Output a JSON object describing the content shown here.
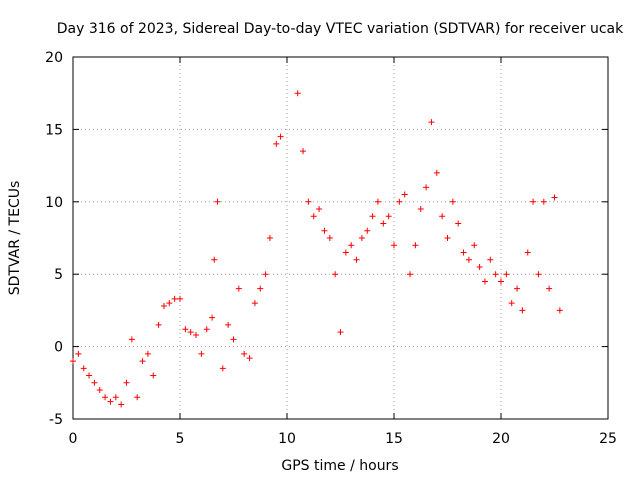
{
  "chart_data": {
    "type": "scatter",
    "title": "Day 316 of 2023, Sidereal Day-to-day VTEC variation (SDTVAR) for receiver ucak",
    "xlabel": "GPS time / hours",
    "ylabel": "SDTVAR / TECUs",
    "xlim": [
      0,
      25
    ],
    "ylim": [
      -5,
      20
    ],
    "xticks": [
      0,
      5,
      10,
      15,
      20,
      25
    ],
    "yticks": [
      -5,
      0,
      5,
      10,
      15,
      20
    ],
    "grid": true,
    "marker": "+",
    "series": [
      {
        "name": "SDTVAR",
        "color": "#ff0000",
        "x": [
          0.0,
          0.25,
          0.5,
          0.75,
          1.0,
          1.25,
          1.5,
          1.75,
          2.0,
          2.25,
          2.5,
          2.75,
          3.0,
          3.25,
          3.5,
          3.75,
          4.0,
          4.25,
          4.5,
          4.75,
          5.0,
          5.25,
          5.5,
          5.75,
          6.0,
          6.25,
          6.5,
          6.6,
          6.75,
          7.0,
          7.25,
          7.5,
          7.75,
          8.0,
          8.25,
          8.5,
          8.75,
          9.0,
          9.2,
          9.5,
          9.7,
          10.5,
          10.75,
          11.0,
          11.25,
          11.5,
          11.75,
          12.0,
          12.25,
          12.5,
          12.75,
          13.0,
          13.25,
          13.5,
          13.75,
          14.0,
          14.25,
          14.5,
          14.75,
          15.0,
          15.25,
          15.5,
          15.75,
          16.0,
          16.25,
          16.5,
          16.75,
          17.0,
          17.25,
          17.5,
          17.75,
          18.0,
          18.25,
          18.5,
          18.75,
          19.0,
          19.25,
          19.5,
          19.75,
          20.0,
          20.25,
          20.5,
          20.75,
          21.0,
          21.25,
          21.5,
          21.75,
          22.0,
          22.25,
          22.5,
          22.75
        ],
        "y": [
          -1.0,
          -0.5,
          -1.5,
          -2.0,
          -2.5,
          -3.0,
          -3.5,
          -3.8,
          -3.5,
          -4.0,
          -2.5,
          0.5,
          -3.5,
          -1.0,
          -0.5,
          -2.0,
          1.5,
          2.8,
          3.0,
          3.3,
          3.3,
          1.2,
          1.0,
          0.8,
          -0.5,
          1.2,
          2.0,
          6.0,
          10.0,
          -1.5,
          1.5,
          0.5,
          4.0,
          -0.5,
          -0.8,
          3.0,
          4.0,
          5.0,
          7.5,
          14.0,
          14.5,
          17.5,
          13.5,
          10.0,
          9.0,
          9.5,
          8.0,
          7.5,
          5.0,
          1.0,
          6.5,
          7.0,
          6.0,
          7.5,
          8.0,
          9.0,
          10.0,
          8.5,
          9.0,
          7.0,
          10.0,
          10.5,
          5.0,
          7.0,
          9.5,
          11.0,
          15.5,
          12.0,
          9.0,
          7.5,
          10.0,
          8.5,
          6.5,
          6.0,
          7.0,
          5.5,
          4.5,
          6.0,
          5.0,
          4.5,
          5.0,
          3.0,
          4.0,
          2.5,
          6.5,
          10.0,
          5.0,
          10.0,
          4.0,
          10.3,
          2.5
        ]
      }
    ]
  }
}
